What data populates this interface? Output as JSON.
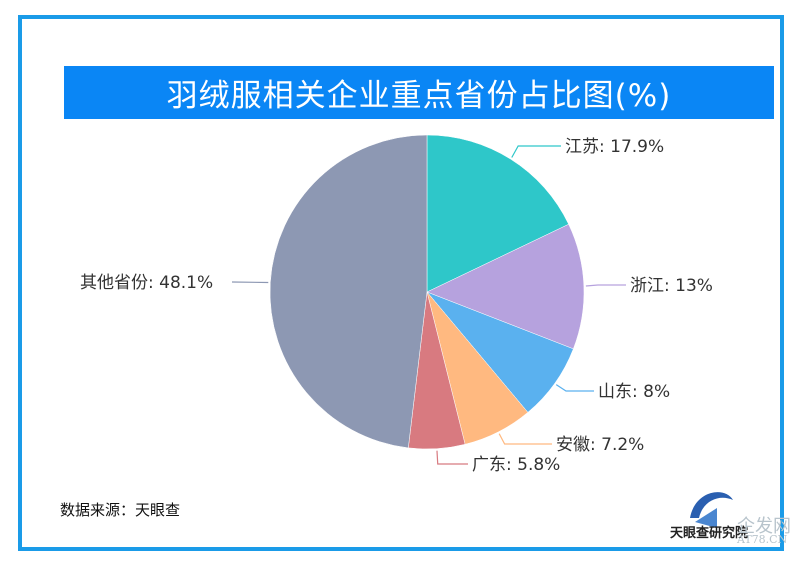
{
  "header": {
    "title": "羽绒服相关企业重点省份占比图(%)"
  },
  "footer": {
    "source": "数据来源：天眼查"
  },
  "watermark": {
    "logo_text": "天眼查研究院",
    "site_cn": "企发网",
    "site_en": "AT78.CN"
  },
  "colors": {
    "frame": "#1a9be8",
    "title_bg": "#0a86f5"
  },
  "chart_data": {
    "type": "pie",
    "title": "羽绒服相关企业重点省份占比图(%)",
    "categories": [
      "江苏",
      "浙江",
      "山东",
      "安徽",
      "广东",
      "其他省份"
    ],
    "values": [
      17.9,
      13,
      8,
      7.2,
      5.8,
      48.1
    ],
    "colors": [
      "#2ec7c9",
      "#b6a2de",
      "#5ab1ef",
      "#ffb980",
      "#d87a80",
      "#8d98b3"
    ],
    "labels": [
      "江苏: 17.9%",
      "浙江: 13%",
      "山东: 8%",
      "安徽: 7.2%",
      "广东: 5.8%",
      "其他省份: 48.1%"
    ],
    "start_angle": "12 o'clock, clockwise",
    "legend": "none (outside labels with leader lines)"
  }
}
